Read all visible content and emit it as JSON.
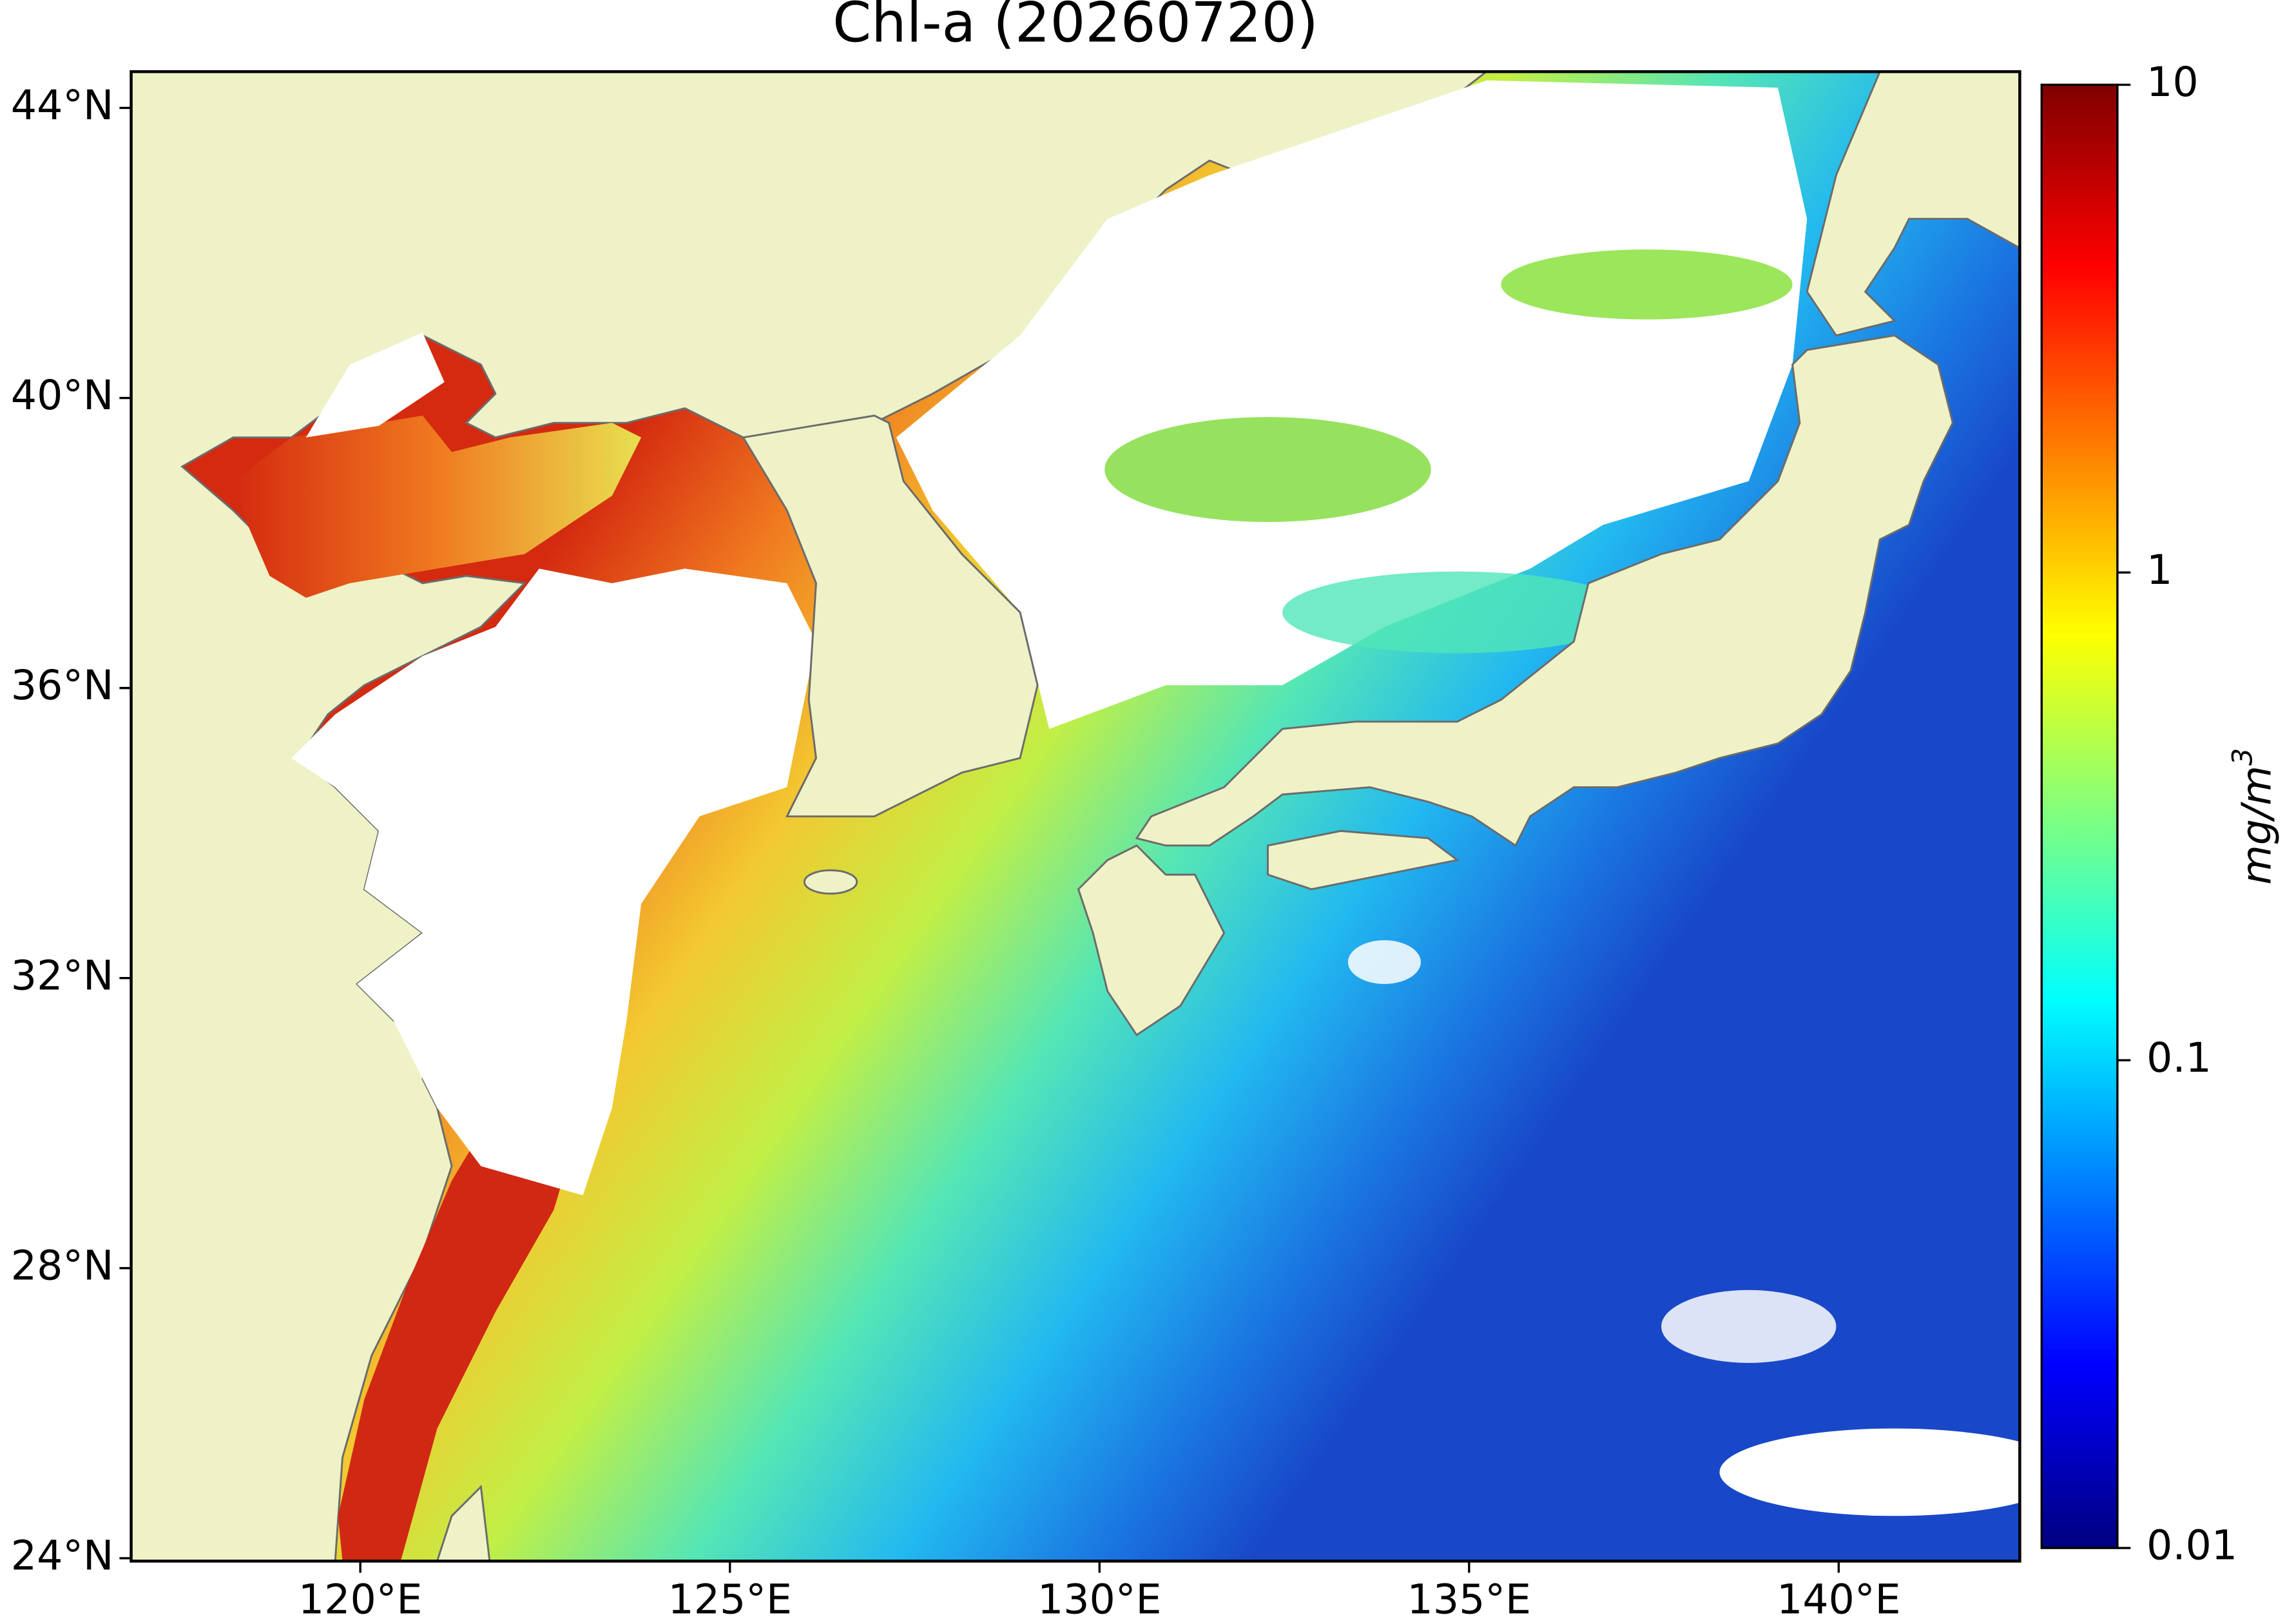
{
  "map": {
    "title": "Chl-a (20260720)",
    "lon_lim": [
      116.9,
      142.45
    ],
    "lat_lim": [
      23.96,
      44.5
    ],
    "lon_ticks": [
      {
        "value": 120,
        "label": "120°E"
      },
      {
        "value": 125,
        "label": "125°E"
      },
      {
        "value": 130,
        "label": "130°E"
      },
      {
        "value": 135,
        "label": "135°E"
      },
      {
        "value": 140,
        "label": "140°E"
      }
    ],
    "lat_ticks": [
      {
        "value": 24,
        "label": "24°N"
      },
      {
        "value": 28,
        "label": "28°N"
      },
      {
        "value": 32,
        "label": "32°N"
      },
      {
        "value": 36,
        "label": "36°N"
      },
      {
        "value": 40,
        "label": "40°N"
      },
      {
        "value": 44,
        "label": "44°N"
      }
    ],
    "colorbar": {
      "scale": "log",
      "lim": [
        0.01,
        10
      ],
      "ticks": [
        10,
        1,
        0.1,
        0.01
      ],
      "label": "mg/m",
      "label_superscript": "3"
    }
  }
}
